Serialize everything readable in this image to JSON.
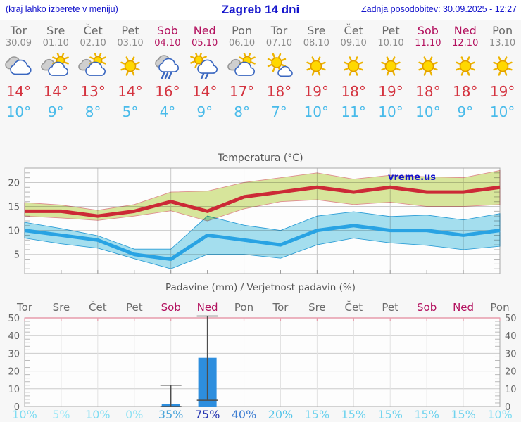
{
  "header": {
    "location_hint": "(kraj lahko izberete v meniju)",
    "title": "Zagreb 14 dni",
    "updated": "Zadnja posodobitev: 30.09.2025 - 12:27"
  },
  "colors": {
    "link_blue": "#1414cc",
    "weekend": "#b3125f",
    "weekday": "#6b6b6b",
    "date_gray": "#8c8c8c",
    "high_red": "#d4333f",
    "low_blue": "#49bbea",
    "max_line": "#cc2936",
    "max_band": "#d9e79c",
    "max_band_edge": "#e08f8f",
    "min_line": "#29a3e3",
    "min_band": "#a5e0f0",
    "min_band_edge": "#2d9fd8",
    "bar_blue": "#2d8ede",
    "whisker": "#4d4d4d",
    "grid": "#c9c9c9",
    "plot_bg": "#fdfdfd",
    "pink_axis": "#e79cab",
    "axis_text": "#555555"
  },
  "forecast": {
    "days": [
      {
        "name": "Tor",
        "date": "30.09",
        "weekend": false,
        "icon": "cloudy",
        "high": "14°",
        "low": "10°"
      },
      {
        "name": "Sre",
        "date": "01.10",
        "weekend": false,
        "icon": "sun-cloud",
        "high": "14°",
        "low": "9°"
      },
      {
        "name": "Čet",
        "date": "02.10",
        "weekend": false,
        "icon": "sun-cloud",
        "high": "13°",
        "low": "8°"
      },
      {
        "name": "Pet",
        "date": "03.10",
        "weekend": false,
        "icon": "sun",
        "high": "14°",
        "low": "5°"
      },
      {
        "name": "Sob",
        "date": "04.10",
        "weekend": true,
        "icon": "rain",
        "high": "16°",
        "low": "4°"
      },
      {
        "name": "Ned",
        "date": "05.10",
        "weekend": true,
        "icon": "sun-rain",
        "high": "14°",
        "low": "9°"
      },
      {
        "name": "Pon",
        "date": "06.10",
        "weekend": false,
        "icon": "sun-cloud",
        "high": "17°",
        "low": "8°"
      },
      {
        "name": "Tor",
        "date": "07.10",
        "weekend": false,
        "icon": "sun-small-cloud",
        "high": "18°",
        "low": "7°"
      },
      {
        "name": "Sre",
        "date": "08.10",
        "weekend": false,
        "icon": "sun",
        "high": "19°",
        "low": "10°"
      },
      {
        "name": "Čet",
        "date": "09.10",
        "weekend": false,
        "icon": "sun",
        "high": "18°",
        "low": "11°"
      },
      {
        "name": "Pet",
        "date": "10.10",
        "weekend": false,
        "icon": "sun",
        "high": "19°",
        "low": "10°"
      },
      {
        "name": "Sob",
        "date": "11.10",
        "weekend": true,
        "icon": "sun",
        "high": "18°",
        "low": "10°"
      },
      {
        "name": "Ned",
        "date": "12.10",
        "weekend": true,
        "icon": "sun",
        "high": "18°",
        "low": "9°"
      },
      {
        "name": "Pon",
        "date": "13.10",
        "weekend": false,
        "icon": "sun",
        "high": "19°",
        "low": "10°"
      }
    ]
  },
  "chart_data": [
    {
      "type": "area",
      "title": "Temperatura (°C)",
      "watermark": "vreme.us",
      "ylim": [
        1,
        23
      ],
      "yticks": [
        5,
        10,
        15,
        20
      ],
      "grid": true,
      "x_days": 14,
      "series": [
        {
          "name": "max-temperature",
          "line": [
            14,
            14,
            13,
            14,
            16,
            14,
            17,
            18,
            19,
            18,
            19,
            18,
            18,
            19
          ],
          "upper": [
            15.8,
            15.3,
            14.2,
            15.4,
            18,
            18.2,
            20,
            21,
            22,
            20.7,
            21.5,
            21.2,
            21,
            22.5
          ],
          "lower": [
            13,
            12.6,
            12.1,
            13,
            14.1,
            12,
            14.5,
            16,
            16.4,
            15.4,
            15.9,
            15,
            15,
            15.4
          ]
        },
        {
          "name": "min-temperature",
          "line": [
            10,
            9,
            8,
            5,
            4,
            9,
            8,
            7,
            10,
            11,
            10,
            10,
            9,
            10
          ],
          "upper": [
            11.7,
            10.4,
            8.9,
            6.1,
            6.1,
            13,
            11.1,
            10,
            13,
            13.9,
            12.9,
            13.2,
            12.2,
            13.5
          ],
          "lower": [
            8.4,
            7.2,
            6.3,
            4.1,
            2,
            5,
            5,
            4.2,
            7,
            8.4,
            7.4,
            6.9,
            6,
            6.7
          ]
        }
      ]
    },
    {
      "type": "bar",
      "title": "Padavine (mm) / Verjetnost padavin (%)",
      "ylim": [
        0,
        50
      ],
      "yticks": [
        0,
        10,
        20,
        30,
        40,
        50
      ],
      "grid": true,
      "day_labels": [
        {
          "label": "Tor",
          "weekend": false
        },
        {
          "label": "Sre",
          "weekend": false
        },
        {
          "label": "Čet",
          "weekend": false
        },
        {
          "label": "Pet",
          "weekend": false
        },
        {
          "label": "Sob",
          "weekend": true
        },
        {
          "label": "Ned",
          "weekend": true
        },
        {
          "label": "Pon",
          "weekend": false
        },
        {
          "label": "Tor",
          "weekend": false
        },
        {
          "label": "Sre",
          "weekend": false
        },
        {
          "label": "Čet",
          "weekend": false
        },
        {
          "label": "Pet",
          "weekend": false
        },
        {
          "label": "Sob",
          "weekend": true
        },
        {
          "label": "Ned",
          "weekend": true
        },
        {
          "label": "Pon",
          "weekend": false
        }
      ],
      "bars": [
        {
          "index": 4,
          "day": "Sob",
          "amount_mm": 1.5,
          "whisker_low": 0,
          "whisker_high": 12
        },
        {
          "index": 5,
          "day": "Ned",
          "amount_mm": 27.5,
          "whisker_low": 3.5,
          "whisker_high": 51
        }
      ],
      "probabilities": [
        {
          "label": "10%",
          "color": "#7edcf2"
        },
        {
          "label": "5%",
          "color": "#9de8f7"
        },
        {
          "label": "10%",
          "color": "#7edcf2"
        },
        {
          "label": "0%",
          "color": "#90e2f4"
        },
        {
          "label": "35%",
          "color": "#4aa4d9"
        },
        {
          "label": "75%",
          "color": "#2636b2"
        },
        {
          "label": "40%",
          "color": "#3e7ed2"
        },
        {
          "label": "20%",
          "color": "#58c6e9"
        },
        {
          "label": "15%",
          "color": "#6fd3ee"
        },
        {
          "label": "15%",
          "color": "#6fd3ee"
        },
        {
          "label": "15%",
          "color": "#6fd3ee"
        },
        {
          "label": "15%",
          "color": "#6fd3ee"
        },
        {
          "label": "15%",
          "color": "#6fd3ee"
        },
        {
          "label": "10%",
          "color": "#7edcf2"
        }
      ]
    }
  ]
}
